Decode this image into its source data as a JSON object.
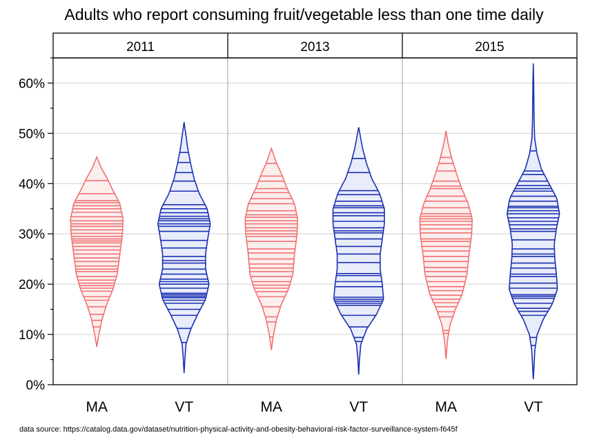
{
  "chart_data": {
    "type": "violin",
    "title": "Adults who report consuming fruit/vegetable less than one time daily",
    "source_note": "data source: https://catalog.data.gov/dataset/nutrition-physical-activity-and-obesity-behavioral-risk-factor-surveillance-system-f645f",
    "ylim": [
      0,
      65
    ],
    "y_ticks": [
      0,
      10,
      20,
      30,
      40,
      50,
      60
    ],
    "y_tick_labels": [
      "0%",
      "10%",
      "20%",
      "30%",
      "40%",
      "50%",
      "60%"
    ],
    "grid": "horizontal",
    "categories": [
      "MA",
      "VT"
    ],
    "colors": {
      "MA": "#f07070",
      "VT": "#1a2fb0"
    },
    "panels": [
      {
        "label": "2011",
        "violins": [
          {
            "category": "MA",
            "min": 7.5,
            "max": 45.3,
            "width_profile": [
              [
                7.5,
                0
              ],
              [
                10,
                0.08
              ],
              [
                13,
                0.2
              ],
              [
                16,
                0.38
              ],
              [
                19,
                0.62
              ],
              [
                22,
                0.78
              ],
              [
                26,
                0.88
              ],
              [
                30,
                0.98
              ],
              [
                33,
                1.0
              ],
              [
                36,
                0.88
              ],
              [
                39,
                0.58
              ],
              [
                41,
                0.4
              ],
              [
                43,
                0.18
              ],
              [
                45.3,
                0
              ]
            ],
            "values": [
              7.8,
              11.5,
              12.8,
              14.0,
              15.5,
              16.8,
              17.5,
              18.6,
              19.2,
              19.7,
              20.2,
              20.8,
              21.5,
              22.5,
              23.0,
              23.6,
              24.5,
              25.2,
              26.0,
              26.8,
              27.5,
              28.2,
              28.6,
              29.0,
              29.5,
              30.1,
              30.8,
              31.5,
              32.0,
              32.6,
              33.4,
              34.3,
              35.0,
              35.6,
              36.2,
              36.6,
              38.0,
              40.6
            ]
          },
          {
            "category": "VT",
            "min": 2.3,
            "max": 52.2,
            "width_profile": [
              [
                2.3,
                0
              ],
              [
                5,
                0.03
              ],
              [
                8,
                0.07
              ],
              [
                11,
                0.25
              ],
              [
                14,
                0.52
              ],
              [
                17,
                0.82
              ],
              [
                20,
                0.95
              ],
              [
                23,
                0.82
              ],
              [
                26,
                0.82
              ],
              [
                29,
                0.9
              ],
              [
                32,
                1.0
              ],
              [
                35,
                0.88
              ],
              [
                38,
                0.58
              ],
              [
                41,
                0.38
              ],
              [
                44,
                0.25
              ],
              [
                47,
                0.14
              ],
              [
                50,
                0.06
              ],
              [
                52.2,
                0
              ]
            ],
            "values": [
              8.4,
              11.2,
              13.8,
              15.0,
              16.2,
              16.8,
              17.3,
              17.6,
              17.9,
              18.2,
              19.2,
              20.0,
              20.5,
              21.0,
              22.0,
              23.0,
              24.2,
              24.7,
              25.5,
              27.2,
              28.7,
              30.5,
              31.5,
              32.0,
              32.6,
              33.0,
              33.5,
              34.2,
              35.0,
              35.8,
              38.5,
              40.5,
              42.2,
              44.2,
              46.2
            ]
          }
        ]
      },
      {
        "label": "2013",
        "violins": [
          {
            "category": "MA",
            "min": 6.9,
            "max": 47.0,
            "width_profile": [
              [
                6.9,
                0
              ],
              [
                10,
                0.08
              ],
              [
                13,
                0.2
              ],
              [
                16,
                0.38
              ],
              [
                19,
                0.65
              ],
              [
                22,
                0.82
              ],
              [
                26,
                0.88
              ],
              [
                30,
                0.98
              ],
              [
                33,
                1.0
              ],
              [
                36,
                0.88
              ],
              [
                39,
                0.6
              ],
              [
                42,
                0.38
              ],
              [
                44,
                0.2
              ],
              [
                47,
                0
              ]
            ],
            "values": [
              9.5,
              12.5,
              13.5,
              15.5,
              17.5,
              18.5,
              19.2,
              19.8,
              20.5,
              21.5,
              22.5,
              23.2,
              24.0,
              25.0,
              26.2,
              27.0,
              28.5,
              29.5,
              30.0,
              30.6,
              31.2,
              32.0,
              32.6,
              33.3,
              33.8,
              34.6,
              36.0,
              37.0,
              38.2,
              39.0,
              40.5,
              41.5,
              44.0
            ]
          },
          {
            "category": "VT",
            "min": 2.0,
            "max": 51.2,
            "width_profile": [
              [
                2,
                0
              ],
              [
                5,
                0.03
              ],
              [
                8,
                0.08
              ],
              [
                11,
                0.3
              ],
              [
                14,
                0.68
              ],
              [
                17,
                0.95
              ],
              [
                20,
                0.9
              ],
              [
                23,
                0.82
              ],
              [
                26,
                0.82
              ],
              [
                29,
                0.9
              ],
              [
                32,
                0.98
              ],
              [
                35,
                0.98
              ],
              [
                38,
                0.8
              ],
              [
                41,
                0.5
              ],
              [
                44,
                0.3
              ],
              [
                47,
                0.15
              ],
              [
                51.2,
                0
              ]
            ],
            "values": [
              8.6,
              9.4,
              11.5,
              13.8,
              15.8,
              16.2,
              16.6,
              17.0,
              17.4,
              19.5,
              20.5,
              21.7,
              22.1,
              24.3,
              26.0,
              27.5,
              29.0,
              30.2,
              30.6,
              31.2,
              32.5,
              33.6,
              34.2,
              35.2,
              35.6,
              36.5,
              37.8,
              38.6,
              42.2,
              45.0
            ]
          }
        ]
      },
      {
        "label": "2015",
        "violins": [
          {
            "category": "MA",
            "min": 5.1,
            "max": 50.5,
            "width_profile": [
              [
                5.1,
                0
              ],
              [
                9,
                0.06
              ],
              [
                12,
                0.16
              ],
              [
                15,
                0.36
              ],
              [
                18,
                0.62
              ],
              [
                22,
                0.8
              ],
              [
                26,
                0.88
              ],
              [
                30,
                0.98
              ],
              [
                33,
                1.0
              ],
              [
                36,
                0.85
              ],
              [
                39,
                0.6
              ],
              [
                42,
                0.4
              ],
              [
                45,
                0.22
              ],
              [
                48,
                0.08
              ],
              [
                50.5,
                0
              ]
            ],
            "values": [
              10.2,
              10.8,
              13.5,
              14.5,
              15.5,
              16.3,
              17.0,
              17.8,
              18.7,
              19.5,
              20.5,
              21.5,
              22.5,
              23.3,
              24.5,
              25.5,
              26.6,
              27.5,
              28.5,
              29.0,
              30.2,
              31.0,
              31.8,
              32.5,
              33.0,
              33.5,
              34.0,
              35.2,
              36.5,
              37.5,
              39.0,
              39.5,
              40.5,
              42.5,
              44.0,
              45.2
            ]
          },
          {
            "category": "VT",
            "min": 1.1,
            "max": 63.9,
            "width_profile": [
              [
                1.1,
                0
              ],
              [
                4,
                0.03
              ],
              [
                7,
                0.06
              ],
              [
                10,
                0.15
              ],
              [
                13,
                0.38
              ],
              [
                16,
                0.72
              ],
              [
                19,
                0.92
              ],
              [
                22,
                0.88
              ],
              [
                25,
                0.82
              ],
              [
                28,
                0.8
              ],
              [
                31,
                0.88
              ],
              [
                34,
                1.0
              ],
              [
                37,
                0.9
              ],
              [
                40,
                0.6
              ],
              [
                43,
                0.3
              ],
              [
                46,
                0.14
              ],
              [
                49,
                0.05
              ],
              [
                53,
                0.03
              ],
              [
                57,
                0.02
              ],
              [
                60,
                0.015
              ],
              [
                63.9,
                0
              ]
            ],
            "values": [
              7.8,
              9.4,
              13.8,
              14.6,
              15.2,
              16.2,
              17.2,
              17.6,
              17.9,
              19.2,
              20.2,
              21.5,
              22.0,
              23.2,
              24.2,
              25.5,
              26.0,
              27.0,
              28.8,
              30.5,
              31.0,
              31.8,
              32.5,
              33.2,
              34.0,
              34.6,
              35.2,
              35.5,
              36.5,
              37.5,
              38.5,
              39.0,
              39.6,
              40.5,
              41.8,
              42.5,
              46.5,
              57.0
            ]
          }
        ]
      }
    ]
  }
}
